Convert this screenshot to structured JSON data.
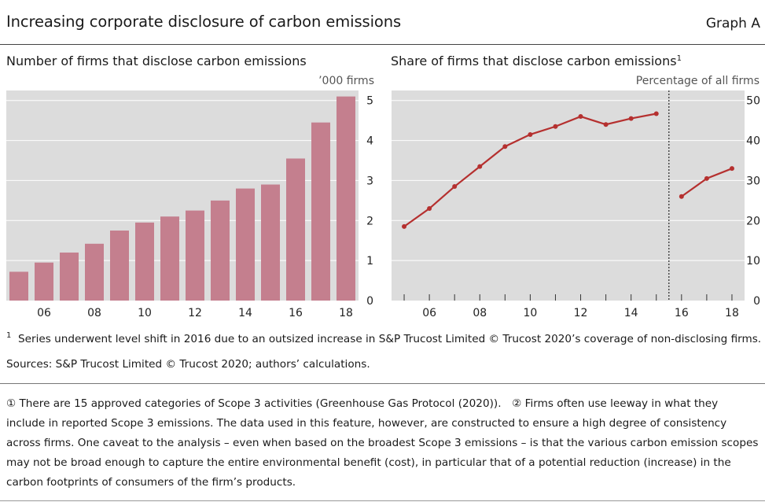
{
  "header": {
    "title": "Increasing corporate disclosure of carbon emissions",
    "graph_label": "Graph A"
  },
  "left_panel": {
    "title": "Number of firms that disclose carbon emissions",
    "unit": "’000 firms"
  },
  "right_panel": {
    "title": "Share of firms that disclose carbon emissions",
    "title_sup": "1",
    "unit": "Percentage of all firms"
  },
  "footnote": {
    "marker": "1",
    "text": "Series underwent level shift in 2016 due to an outsized increase in S&P Trucost Limited © Trucost 2020’s coverage of non-disclosing firms."
  },
  "sources": "Sources: S&P Trucost Limited © Trucost 2020; authors’ calculations.",
  "notes": {
    "line1": "① There are 15 approved categories of Scope 3 activities (Greenhouse Gas Protocol (2020)). ② Firms often use leeway in what they",
    "line2": "include in reported Scope 3 emissions. The data used in this feature, however, are constructed to ensure a high degree of consistency",
    "line3": "across firms. One caveat to the analysis – even when based on the broadest Scope 3 emissions – is that the various carbon emission scopes",
    "line4": "may not be broad enough to capture the entire environmental benefit (cost), in particular that of a potential reduction (increase) in the",
    "line5": "carbon footprints of consumers of the firm’s products."
  },
  "colors": {
    "bar": "#c47f8e",
    "line": "#b5302f",
    "plot_bg": "#dcdcdc",
    "grid": "#ffffff",
    "divider": "#444444"
  },
  "chart_data": [
    {
      "type": "bar",
      "title": "Number of firms that disclose carbon emissions",
      "ylabel": "’000 firms",
      "categories": [
        "2005",
        "2006",
        "2007",
        "2008",
        "2009",
        "2010",
        "2011",
        "2012",
        "2013",
        "2014",
        "2015",
        "2016",
        "2017",
        "2018"
      ],
      "tick_labels": [
        "06",
        "08",
        "10",
        "12",
        "14",
        "16",
        "18"
      ],
      "tick_years": [
        2006,
        2008,
        2010,
        2012,
        2014,
        2016,
        2018
      ],
      "values": [
        0.72,
        0.95,
        1.2,
        1.42,
        1.75,
        1.95,
        2.1,
        2.25,
        2.5,
        2.8,
        2.9,
        3.55,
        4.45,
        5.1
      ],
      "ylim": [
        0,
        5.25
      ],
      "yticks": [
        0,
        1,
        2,
        3,
        4,
        5
      ],
      "y_axis_side": "right",
      "grid": true
    },
    {
      "type": "line",
      "title": "Share of firms that disclose carbon emissions",
      "ylabel": "Percentage of all firms",
      "tick_labels": [
        "06",
        "08",
        "10",
        "12",
        "14",
        "16",
        "18"
      ],
      "tick_years": [
        2006,
        2008,
        2010,
        2012,
        2014,
        2016,
        2018
      ],
      "ylim": [
        0,
        52.5
      ],
      "yticks": [
        0,
        10,
        20,
        30,
        40,
        50
      ],
      "y_axis_side": "right",
      "grid": true,
      "level_shift_year": 2015.5,
      "series": [
        {
          "x": [
            2005,
            2006,
            2007,
            2008,
            2009,
            2010,
            2011,
            2012,
            2013,
            2014,
            2015
          ],
          "y": [
            18.5,
            23,
            28.5,
            33.5,
            38.5,
            41.5,
            43.5,
            46,
            44,
            45.5,
            46.7
          ]
        },
        {
          "x": [
            2016,
            2017,
            2018
          ],
          "y": [
            26,
            30.5,
            33
          ]
        }
      ]
    }
  ]
}
